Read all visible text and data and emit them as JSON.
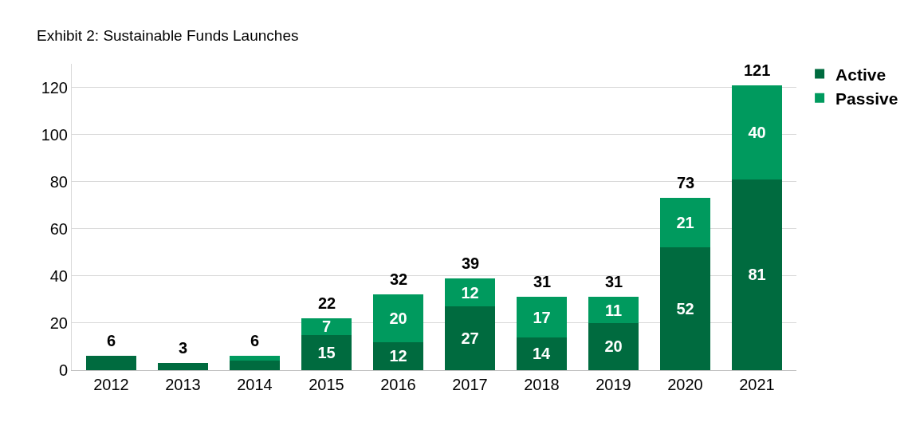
{
  "chart_data": {
    "type": "bar",
    "title": "Exhibit 2: Sustainable Funds Launches",
    "categories": [
      "2012",
      "2013",
      "2014",
      "2015",
      "2016",
      "2017",
      "2018",
      "2019",
      "2020",
      "2021"
    ],
    "stacked": true,
    "series": [
      {
        "name": "Active",
        "color": "#006b3f",
        "values": [
          6,
          3,
          4,
          15,
          12,
          27,
          14,
          20,
          52,
          81
        ],
        "value_labels": [
          null,
          null,
          null,
          "15",
          "12",
          "27",
          "14",
          "20",
          "52",
          "81"
        ]
      },
      {
        "name": "Passive",
        "color": "#009a5e",
        "values": [
          null,
          null,
          2,
          7,
          20,
          12,
          17,
          11,
          21,
          40
        ],
        "value_labels": [
          null,
          null,
          null,
          "7",
          "20",
          "12",
          "17",
          "11",
          "21",
          "40"
        ]
      }
    ],
    "totals": [
      "6",
      "3",
      "6",
      "22",
      "32",
      "39",
      "31",
      "31",
      "73",
      "121"
    ],
    "ylim": [
      0,
      130
    ],
    "yticks": [
      0,
      20,
      40,
      60,
      80,
      100,
      120
    ],
    "grid": "y",
    "legend": "top right"
  }
}
